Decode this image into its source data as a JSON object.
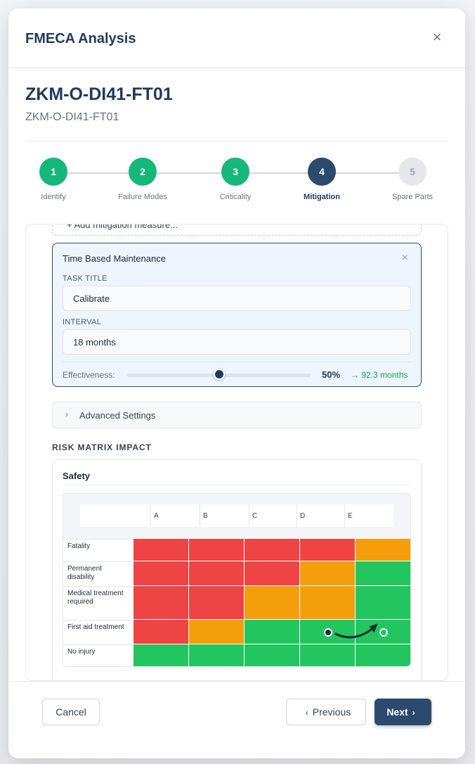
{
  "modal": {
    "title": "FMECA Analysis",
    "close_icon": "×"
  },
  "asset": {
    "title": "ZKM-O-DI41-FT01",
    "subtitle": "ZKM-O-DI41-FT01"
  },
  "stepper": {
    "steps": [
      {
        "number": "1",
        "label": "Identify",
        "state": "done"
      },
      {
        "number": "2",
        "label": "Failure Modes",
        "state": "done"
      },
      {
        "number": "3",
        "label": "Criticality",
        "state": "done"
      },
      {
        "number": "4",
        "label": "Mitigation",
        "state": "active"
      },
      {
        "number": "5",
        "label": "Spare Parts",
        "state": "pending"
      }
    ]
  },
  "mitigation": {
    "add_measure_label": "+ Add mitigation measure...",
    "card": {
      "type_label": "Time Based Maintenance",
      "close_icon": "×",
      "task_title_label": "TASK TITLE",
      "task_title_value": "Calibrate",
      "interval_label": "INTERVAL",
      "interval_value": "18 months",
      "effectiveness_label": "Effectiveness:",
      "effectiveness_value": 0.5,
      "effectiveness_pct": "50%",
      "effectiveness_result": "→ 92.3 months"
    },
    "advanced": {
      "chevron_icon": "›",
      "label": "Advanced Settings"
    }
  },
  "risk_matrix": {
    "section_title": "RISK MATRIX IMPACT",
    "category": "Safety",
    "columns": [
      "A",
      "B",
      "C",
      "D",
      "E"
    ],
    "rows": [
      {
        "label": "Fatality",
        "cells": [
          "#ef4444",
          "#ef4444",
          "#ef4444",
          "#ef4444",
          "#f59e0b"
        ]
      },
      {
        "label": "Permanent disability",
        "cells": [
          "#ef4444",
          "#ef4444",
          "#ef4444",
          "#f59e0b",
          "#22c55e"
        ]
      },
      {
        "label": "Medical treatment required",
        "cells": [
          "#ef4444",
          "#ef4444",
          "#f59e0b",
          "#f59e0b",
          "#22c55e"
        ]
      },
      {
        "label": "First aid treatment",
        "cells": [
          "#ef4444",
          "#f59e0b",
          "#22c55e",
          "#22c55e",
          "#22c55e"
        ]
      },
      {
        "label": "No injury",
        "cells": [
          "#22c55e",
          "#22c55e",
          "#22c55e",
          "#22c55e",
          "#22c55e"
        ]
      }
    ],
    "marker_from": {
      "row": 3,
      "col": 3
    },
    "marker_to": {
      "row": 3,
      "col": 4
    }
  },
  "footer": {
    "cancel_label": "Cancel",
    "previous_label": "Previous",
    "next_label": "Next",
    "prev_icon": "‹",
    "next_icon": "›"
  },
  "colors": {
    "primary": "#2c4a6e",
    "success": "#16b77a",
    "red": "#ef4444",
    "orange": "#f59e0b",
    "green": "#22c55e"
  }
}
